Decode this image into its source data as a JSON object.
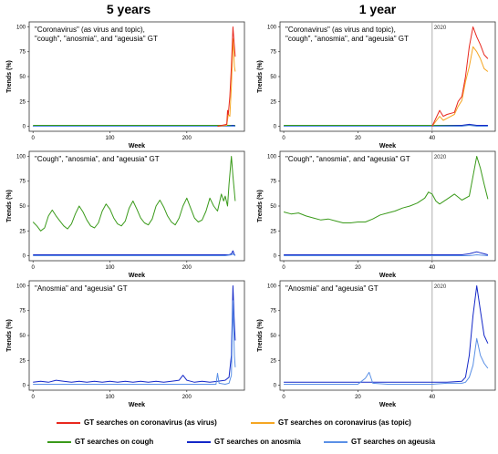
{
  "columns": {
    "left": "5 years",
    "right": "1 year"
  },
  "legend": {
    "items": [
      {
        "label": "GT searches on coronavirus (as virus)",
        "color": "#e8281e"
      },
      {
        "label": "GT searches on coronavirus (as topic)",
        "color": "#f5a623"
      },
      {
        "label": "GT searches on cough",
        "color": "#3a9a1a"
      },
      {
        "label": "GT searches on anosmia",
        "color": "#1428c8"
      },
      {
        "label": "GT searches on ageusia",
        "color": "#5a90e6"
      }
    ]
  },
  "colors": {
    "virus": "#e8281e",
    "topic": "#f5a623",
    "cough": "#3a9a1a",
    "anosmia": "#1428c8",
    "ageusia": "#5a90e6",
    "marker": "#999999"
  },
  "chart_data": [
    {
      "type": "line",
      "panel": "5y-1",
      "title": "\"Coronavirus\" (as virus and topic), \"cough\", \"anosmia\", and \"ageusia\" GT",
      "xlabel": "Week",
      "ylabel": "Trends (%)",
      "xlim": [
        -5,
        275
      ],
      "ylim": [
        -5,
        105
      ],
      "xticks": [
        0,
        100,
        200
      ],
      "yticks": [
        0,
        25,
        50,
        75,
        100
      ],
      "series": [
        {
          "key": "cough",
          "x": [
            0,
            20,
            60,
            120,
            200,
            240,
            255,
            260,
            263
          ],
          "y": [
            1,
            1,
            1,
            1,
            1,
            1,
            1,
            1,
            1
          ]
        },
        {
          "key": "anosmia",
          "x": [
            0,
            100,
            200,
            255,
            260,
            263
          ],
          "y": [
            0,
            0,
            0,
            0,
            1,
            0
          ]
        },
        {
          "key": "ageusia",
          "x": [
            0,
            100,
            200,
            255,
            260,
            263
          ],
          "y": [
            0,
            0,
            0,
            0,
            0,
            0
          ]
        },
        {
          "key": "topic",
          "x": [
            240,
            252,
            254,
            256,
            258,
            260,
            262,
            263
          ],
          "y": [
            0,
            1,
            12,
            10,
            40,
            88,
            60,
            55
          ]
        },
        {
          "key": "virus",
          "x": [
            240,
            252,
            253,
            254,
            256,
            258,
            260,
            262,
            263
          ],
          "y": [
            0,
            2,
            16,
            12,
            30,
            60,
            100,
            80,
            70
          ]
        }
      ]
    },
    {
      "type": "line",
      "panel": "1y-1",
      "title": "\"Coronavirus\" (as virus and topic), \"cough\", \"anosmia\", and \"ageusia\" GT",
      "annotation": "2020",
      "marker_x": 40,
      "xlabel": "Week",
      "ylabel": "Trends (%)",
      "xlim": [
        -1,
        57
      ],
      "ylim": [
        -5,
        105
      ],
      "xticks": [
        0,
        20,
        40
      ],
      "yticks": [
        0,
        25,
        50,
        75,
        100
      ],
      "series": [
        {
          "key": "cough",
          "x": [
            0,
            10,
            20,
            30,
            40,
            45,
            50,
            55
          ],
          "y": [
            1,
            1,
            1,
            1,
            1,
            1,
            1,
            1
          ]
        },
        {
          "key": "anosmia",
          "x": [
            0,
            40,
            48,
            50,
            52,
            55
          ],
          "y": [
            0,
            0,
            1,
            2,
            1,
            1
          ]
        },
        {
          "key": "ageusia",
          "x": [
            0,
            40,
            48,
            50,
            52,
            55
          ],
          "y": [
            0,
            0,
            0,
            1,
            0,
            0
          ]
        },
        {
          "key": "topic",
          "x": [
            40,
            42,
            43,
            44,
            46,
            47,
            48,
            49,
            50,
            51,
            52,
            53,
            54,
            55
          ],
          "y": [
            0,
            10,
            6,
            8,
            12,
            20,
            26,
            45,
            60,
            80,
            75,
            68,
            58,
            55
          ]
        },
        {
          "key": "virus",
          "x": [
            40,
            42,
            43,
            44,
            46,
            47,
            48,
            49,
            50,
            51,
            52,
            53,
            54,
            55
          ],
          "y": [
            0,
            16,
            10,
            12,
            14,
            25,
            30,
            50,
            80,
            100,
            90,
            82,
            72,
            68
          ]
        }
      ]
    },
    {
      "type": "line",
      "panel": "5y-2",
      "title": "\"Cough\", \"anosmia\", and \"ageusia\" GT",
      "xlabel": "Week",
      "ylabel": "Trends (%)",
      "xlim": [
        -5,
        275
      ],
      "ylim": [
        -5,
        105
      ],
      "xticks": [
        0,
        100,
        200
      ],
      "yticks": [
        0,
        25,
        50,
        75,
        100
      ],
      "series": [
        {
          "key": "cough",
          "x": [
            0,
            5,
            10,
            15,
            20,
            25,
            30,
            35,
            40,
            45,
            50,
            55,
            60,
            65,
            70,
            75,
            80,
            85,
            90,
            95,
            100,
            105,
            110,
            115,
            120,
            125,
            130,
            135,
            140,
            145,
            150,
            155,
            160,
            165,
            170,
            175,
            180,
            185,
            190,
            195,
            200,
            205,
            210,
            215,
            220,
            225,
            230,
            235,
            240,
            245,
            248,
            250,
            253,
            255,
            258,
            260,
            263
          ],
          "y": [
            34,
            30,
            25,
            28,
            40,
            46,
            40,
            35,
            30,
            27,
            32,
            42,
            50,
            44,
            36,
            30,
            28,
            33,
            45,
            52,
            47,
            38,
            32,
            30,
            35,
            48,
            55,
            47,
            38,
            33,
            31,
            37,
            50,
            56,
            49,
            40,
            34,
            31,
            38,
            50,
            58,
            48,
            38,
            34,
            36,
            45,
            58,
            50,
            45,
            62,
            55,
            60,
            50,
            72,
            100,
            80,
            55
          ]
        },
        {
          "key": "anosmia",
          "x": [
            0,
            100,
            200,
            250,
            255,
            258,
            260,
            262,
            263
          ],
          "y": [
            1,
            1,
            1,
            1,
            1,
            2,
            5,
            1,
            1
          ]
        },
        {
          "key": "ageusia",
          "x": [
            0,
            100,
            200,
            250,
            258,
            260,
            263
          ],
          "y": [
            0,
            0,
            0,
            0,
            1,
            2,
            0
          ]
        }
      ]
    },
    {
      "type": "line",
      "panel": "1y-2",
      "title": "\"Cough\", \"anosmia\", and \"ageusia\" GT",
      "annotation": "2020",
      "marker_x": 40,
      "xlabel": "Week",
      "ylabel": "Trends (%)",
      "xlim": [
        -1,
        57
      ],
      "ylim": [
        -5,
        105
      ],
      "xticks": [
        0,
        20,
        40
      ],
      "yticks": [
        0,
        25,
        50,
        75,
        100
      ],
      "series": [
        {
          "key": "cough",
          "x": [
            0,
            2,
            4,
            6,
            8,
            10,
            12,
            14,
            16,
            18,
            20,
            22,
            24,
            26,
            28,
            30,
            32,
            34,
            36,
            38,
            39,
            40,
            41,
            42,
            44,
            46,
            48,
            50,
            51,
            52,
            53,
            54,
            55
          ],
          "y": [
            44,
            42,
            43,
            40,
            38,
            36,
            37,
            35,
            33,
            33,
            34,
            34,
            37,
            41,
            43,
            45,
            48,
            50,
            53,
            58,
            64,
            62,
            55,
            52,
            57,
            62,
            56,
            60,
            80,
            100,
            88,
            72,
            57
          ]
        },
        {
          "key": "anosmia",
          "x": [
            0,
            20,
            40,
            48,
            50,
            52,
            53,
            54,
            55
          ],
          "y": [
            1,
            1,
            1,
            1,
            2,
            4,
            3,
            2,
            1
          ]
        },
        {
          "key": "ageusia",
          "x": [
            0,
            20,
            40,
            50,
            52,
            55
          ],
          "y": [
            0,
            0,
            0,
            0,
            1,
            0
          ]
        }
      ]
    },
    {
      "type": "line",
      "panel": "5y-3",
      "title": "\"Anosmia\"  and \"ageusia\" GT",
      "xlabel": "Week",
      "ylabel": "Trends (%)",
      "xlim": [
        -5,
        275
      ],
      "ylim": [
        -5,
        105
      ],
      "xticks": [
        0,
        100,
        200
      ],
      "yticks": [
        0,
        25,
        50,
        75,
        100
      ],
      "series": [
        {
          "key": "anosmia",
          "x": [
            0,
            10,
            20,
            30,
            40,
            50,
            60,
            70,
            80,
            90,
            100,
            110,
            120,
            130,
            140,
            150,
            160,
            170,
            180,
            190,
            195,
            200,
            205,
            210,
            220,
            230,
            240,
            250,
            255,
            258,
            260,
            262,
            263
          ],
          "y": [
            3,
            4,
            3,
            5,
            4,
            3,
            4,
            3,
            4,
            3,
            4,
            3,
            4,
            3,
            4,
            3,
            4,
            3,
            4,
            5,
            10,
            5,
            4,
            3,
            4,
            3,
            4,
            5,
            8,
            30,
            100,
            60,
            45
          ]
        },
        {
          "key": "ageusia",
          "x": [
            0,
            20,
            40,
            60,
            80,
            100,
            120,
            140,
            160,
            180,
            200,
            220,
            238,
            240,
            242,
            250,
            255,
            258,
            260,
            262,
            263
          ],
          "y": [
            1,
            1,
            1,
            1,
            1,
            1,
            1,
            1,
            1,
            1,
            1,
            1,
            1,
            12,
            2,
            1,
            2,
            10,
            85,
            30,
            18
          ]
        }
      ]
    },
    {
      "type": "line",
      "panel": "1y-3",
      "title": "\"Anosmia\"  and \"ageusia\" GT",
      "annotation": "2020",
      "marker_x": 40,
      "xlabel": "Week",
      "ylabel": "Trends (%)",
      "xlim": [
        -1,
        57
      ],
      "ylim": [
        -5,
        105
      ],
      "xticks": [
        0,
        20,
        40
      ],
      "yticks": [
        0,
        25,
        50,
        75,
        100
      ],
      "series": [
        {
          "key": "anosmia",
          "x": [
            0,
            4,
            8,
            12,
            16,
            20,
            24,
            28,
            32,
            36,
            40,
            44,
            48,
            49,
            50,
            51,
            52,
            53,
            54,
            55
          ],
          "y": [
            3,
            3,
            3,
            3,
            3,
            3,
            3,
            3,
            3,
            3,
            3,
            3,
            4,
            8,
            30,
            70,
            100,
            75,
            50,
            42
          ]
        },
        {
          "key": "ageusia",
          "x": [
            0,
            10,
            20,
            21,
            22,
            23,
            24,
            28,
            32,
            36,
            40,
            44,
            48,
            49,
            50,
            51,
            52,
            53,
            54,
            55
          ],
          "y": [
            1,
            1,
            1,
            4,
            7,
            13,
            2,
            1,
            1,
            1,
            1,
            2,
            2,
            3,
            8,
            20,
            47,
            30,
            22,
            17
          ]
        }
      ]
    }
  ]
}
